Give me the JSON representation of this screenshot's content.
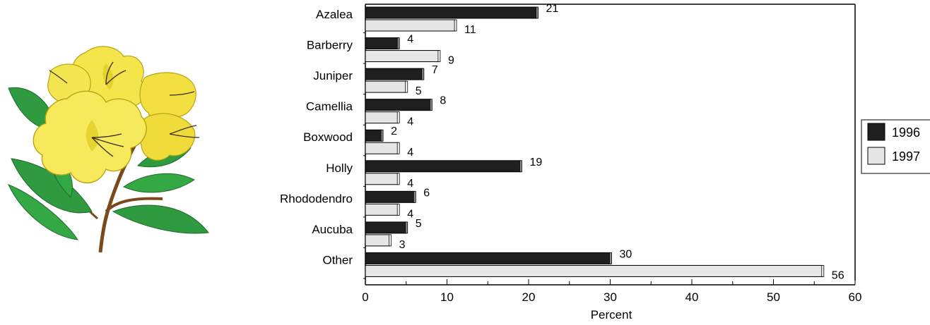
{
  "chart_data": {
    "type": "bar",
    "orientation": "horizontal",
    "categories": [
      "Azalea",
      "Barberry",
      "Juniper",
      "Camellia",
      "Boxwood",
      "Holly",
      "Rhododendro",
      "Aucuba",
      "Other"
    ],
    "series": [
      {
        "name": "1996",
        "values": [
          21,
          4,
          7,
          8,
          2,
          19,
          6,
          5,
          30
        ],
        "color": "#1f1f1f"
      },
      {
        "name": "1997",
        "values": [
          11,
          9,
          5,
          4,
          4,
          4,
          4,
          3,
          56
        ],
        "color": "#e6e6e6"
      }
    ],
    "xlabel": "Percent",
    "xlim": [
      0,
      60
    ],
    "xticks": [
      0,
      10,
      20,
      30,
      40,
      50,
      60
    ],
    "legend": "right",
    "grid": false
  },
  "illustration": {
    "icon": "azalea-flower-icon",
    "colors": {
      "petal": "#f3e54a",
      "petal_shade": "#d8c21c",
      "leaf": "#2f9a3f",
      "leaf_dark": "#1d6b2a",
      "stem": "#7a4a1c"
    }
  }
}
